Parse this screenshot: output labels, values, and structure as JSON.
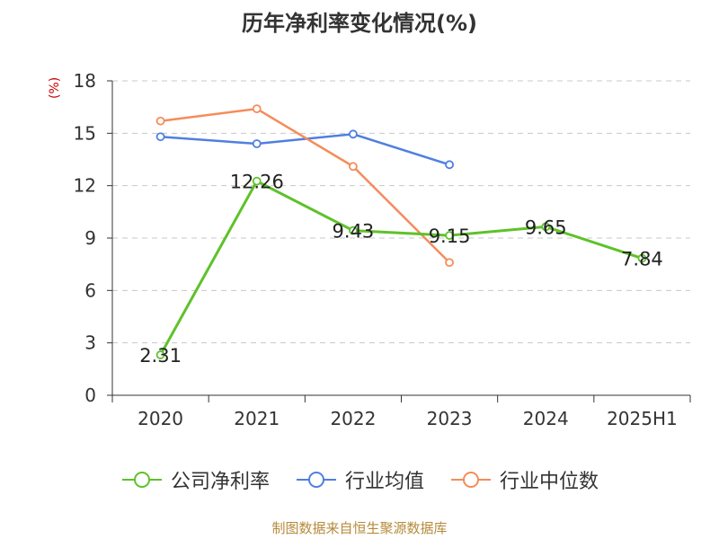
{
  "title": "历年净利率变化情况(%)",
  "unit_label": "(%)",
  "source": "制图数据来自恒生聚源数据库",
  "colors": {
    "company": "#5ec22a",
    "industry_avg": "#4f7fe0",
    "industry_median": "#f58c5a",
    "axis": "#333333",
    "grid": "#c8c8c8",
    "unit": "#cc0000"
  },
  "chart_data": {
    "type": "line",
    "categories": [
      "2020",
      "2021",
      "2022",
      "2023",
      "2024",
      "2025H1"
    ],
    "ylim": [
      0,
      18
    ],
    "yticks": [
      0,
      3,
      6,
      9,
      12,
      15,
      18
    ],
    "grid": "horizontal-dashed",
    "legend_position": "bottom",
    "series": [
      {
        "name": "公司净利率",
        "color": "#5ec22a",
        "values": [
          2.31,
          12.26,
          9.43,
          9.15,
          9.65,
          7.84
        ],
        "labels": [
          "2.31",
          "12.26",
          "9.43",
          "9.15",
          "9.65",
          "7.84"
        ]
      },
      {
        "name": "行业均值",
        "color": "#4f7fe0",
        "values": [
          14.8,
          14.4,
          14.95,
          13.2,
          null,
          null
        ]
      },
      {
        "name": "行业中位数",
        "color": "#f58c5a",
        "values": [
          15.7,
          16.4,
          13.1,
          7.6,
          null,
          null
        ]
      }
    ]
  }
}
